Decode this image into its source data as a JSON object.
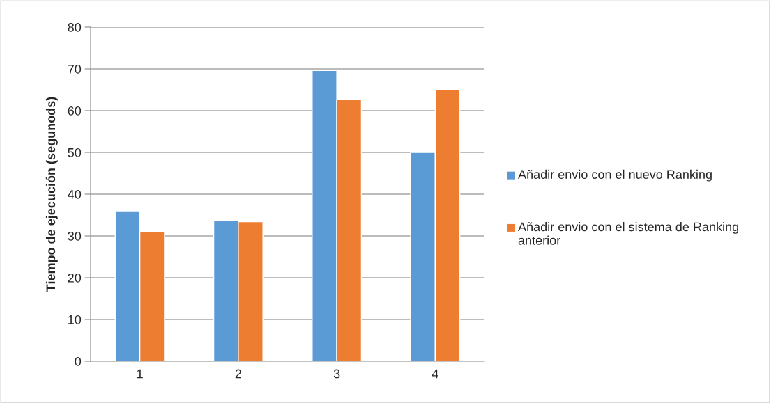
{
  "chart_data": {
    "type": "bar",
    "ylabel": "Tiempo de ejecución (segunods)",
    "categories": [
      "1",
      "2",
      "3",
      "4"
    ],
    "series": [
      {
        "name": "Añadir envio con el nuevo Ranking",
        "color": "#5b9bd5",
        "values": [
          36.0,
          33.8,
          69.6,
          50.0
        ]
      },
      {
        "name": "Añadir envio con el sistema de Ranking anterior",
        "color": "#ed7d31",
        "values": [
          31.0,
          33.4,
          62.6,
          65.0
        ]
      }
    ],
    "ylim": [
      0,
      80
    ],
    "yticks": [
      0,
      10,
      20,
      30,
      40,
      50,
      60,
      70,
      80
    ],
    "grid": "y",
    "legend": "right"
  }
}
